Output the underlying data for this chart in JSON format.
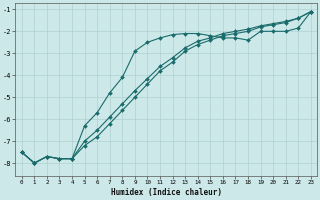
{
  "xlabel": "Humidex (Indice chaleur)",
  "bg_color": "#cce8e8",
  "grid_color": "#b0d0d0",
  "line_color": "#1a6b6b",
  "xlim": [
    -0.5,
    23.5
  ],
  "ylim": [
    -8.6,
    -0.7
  ],
  "yticks": [
    -8,
    -7,
    -6,
    -5,
    -4,
    -3,
    -2,
    -1
  ],
  "xticks": [
    0,
    1,
    2,
    3,
    4,
    5,
    6,
    7,
    8,
    9,
    10,
    11,
    12,
    13,
    14,
    15,
    16,
    17,
    18,
    19,
    20,
    21,
    22,
    23
  ],
  "series": [
    {
      "x": [
        0,
        1,
        2,
        3,
        4,
        5,
        6,
        7,
        8,
        9,
        10,
        11,
        12,
        13,
        14,
        15,
        16,
        17,
        18,
        19,
        20,
        21,
        22,
        23
      ],
      "y": [
        -7.5,
        -8.0,
        -7.7,
        -7.8,
        -7.8,
        -6.3,
        -5.7,
        -4.8,
        -4.1,
        -2.9,
        -2.5,
        -2.3,
        -2.15,
        -2.1,
        -2.1,
        -2.2,
        -2.3,
        -2.3,
        -2.4,
        -2.0,
        -2.0,
        -2.0,
        -1.85,
        -1.1
      ],
      "marker": "D",
      "markersize": 2.0,
      "linewidth": 0.8,
      "with_markers": true
    },
    {
      "x": [
        0,
        1,
        2,
        3,
        4,
        5,
        6,
        7,
        8,
        9,
        10,
        11,
        12,
        13,
        14,
        15,
        16,
        17,
        18,
        19,
        20,
        21,
        22,
        23
      ],
      "y": [
        -7.5,
        -8.0,
        -7.7,
        -7.8,
        -7.8,
        -7.2,
        -6.8,
        -6.2,
        -5.6,
        -5.0,
        -4.4,
        -3.8,
        -3.4,
        -2.9,
        -2.6,
        -2.4,
        -2.2,
        -2.1,
        -2.0,
        -1.8,
        -1.7,
        -1.6,
        -1.4,
        -1.1
      ],
      "marker": "D",
      "markersize": 2.0,
      "linewidth": 0.8,
      "with_markers": true
    },
    {
      "x": [
        0,
        1,
        2,
        3,
        4,
        5,
        6,
        7,
        8,
        9,
        10,
        11,
        12,
        13,
        14,
        15,
        16,
        17,
        18,
        19,
        20,
        21,
        22,
        23
      ],
      "y": [
        -7.5,
        -8.0,
        -7.7,
        -7.8,
        -7.8,
        -7.0,
        -6.5,
        -5.9,
        -5.3,
        -4.7,
        -4.15,
        -3.6,
        -3.2,
        -2.75,
        -2.45,
        -2.3,
        -2.1,
        -2.0,
        -1.9,
        -1.75,
        -1.65,
        -1.55,
        -1.4,
        -1.1
      ],
      "marker": "D",
      "markersize": 2.0,
      "linewidth": 0.8,
      "with_markers": true
    }
  ]
}
